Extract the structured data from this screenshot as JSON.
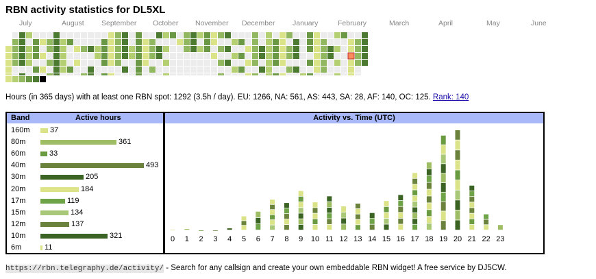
{
  "title": "RBN activity statistics for DL5XL",
  "months": [
    "July",
    "August",
    "September",
    "October",
    "November",
    "December",
    "January",
    "February",
    "March",
    "April",
    "May",
    "June"
  ],
  "calendar": {
    "weeks": 53,
    "levels": [
      "1001000100110000110",
      "1110001110001111110",
      "1111100111101111111",
      "1111000111000111111",
      "1100000110001111100",
      "1000000100001000000",
      "1000000000001000000"
    ],
    "palette": [
      "#ececec",
      "#dbe389",
      "#b4cf72",
      "#91b860",
      "#6b9844",
      "#4c7a30",
      "#000000"
    ],
    "today_color": "#ff8a5c"
  },
  "legend": [
    "#dbe389",
    "#b4cf72",
    "#91b860",
    "#6b9844",
    "#4c7a30",
    "#000000"
  ],
  "summary": {
    "text": "Hours (in 365 days) with at least one RBN spot: 1292 (3.5h / day). EU: 1266, NA: 561, AS: 443, SA: 28, AF: 140, OC: 125. ",
    "rank": "Rank: 140"
  },
  "band_table": {
    "col_band": "Band",
    "col_hours": "Active hours",
    "max": 493,
    "rows": [
      {
        "band": "160m",
        "hours": 37,
        "color": "#dbe389"
      },
      {
        "band": "80m",
        "hours": 361,
        "color": "#9ebd65"
      },
      {
        "band": "60m",
        "hours": 33,
        "color": "#6a9b40"
      },
      {
        "band": "40m",
        "hours": 493,
        "color": "#6b823c"
      },
      {
        "band": "30m",
        "hours": 205,
        "color": "#3a6324"
      },
      {
        "band": "20m",
        "hours": 184,
        "color": "#dde389"
      },
      {
        "band": "17m",
        "hours": 119,
        "color": "#6ea347"
      },
      {
        "band": "15m",
        "hours": 134,
        "color": "#a9c877"
      },
      {
        "band": "12m",
        "hours": 137,
        "color": "#6b823c"
      },
      {
        "band": "10m",
        "hours": 321,
        "color": "#3a6324"
      },
      {
        "band": "6m",
        "hours": 11,
        "color": "#dbe389"
      }
    ]
  },
  "time_chart": {
    "title": "Activity vs. Time (UTC)",
    "hours": [
      "0",
      "1",
      "2",
      "3",
      "4",
      "5",
      "6",
      "7",
      "8",
      "9",
      "10",
      "11",
      "12",
      "13",
      "14",
      "15",
      "16",
      "17",
      "18",
      "19",
      "20",
      "21",
      "22",
      "23"
    ],
    "totals": [
      1,
      2,
      0,
      0,
      3,
      21,
      28,
      46,
      41,
      59,
      42,
      51,
      36,
      40,
      26,
      44,
      53,
      86,
      102,
      142,
      150,
      67,
      24,
      8
    ]
  },
  "footer": {
    "url": "https://rbn.telegraphy.de/activity/",
    "text": " - Search for any callsign and create your own embeddable RBN widget! A free service by DJ5CW."
  }
}
